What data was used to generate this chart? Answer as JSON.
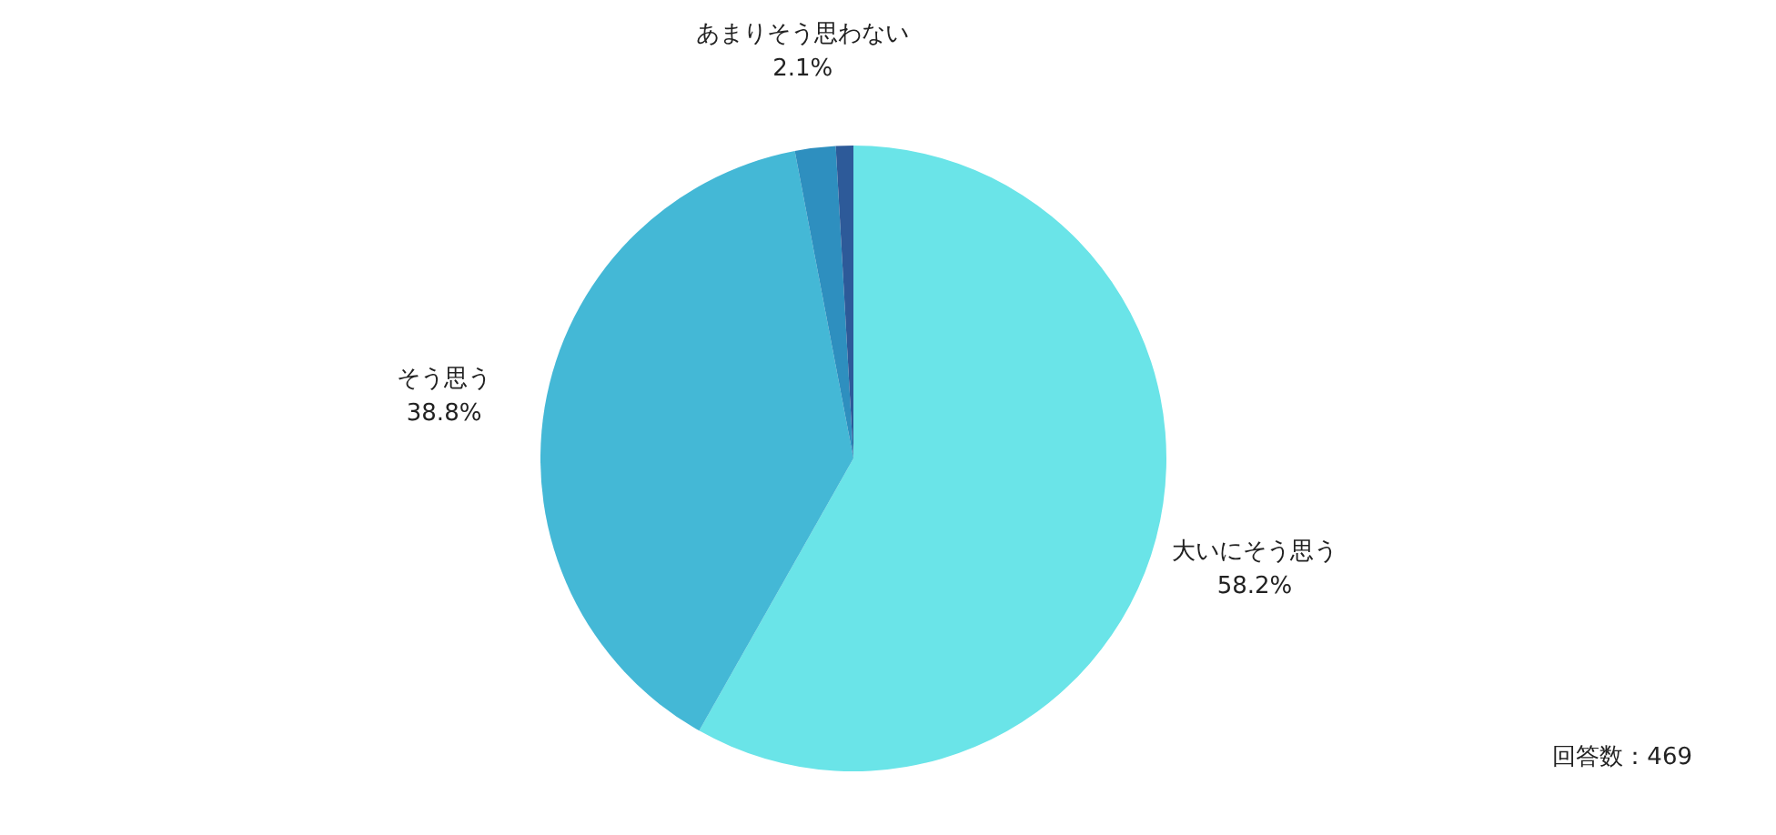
{
  "chart_data": {
    "type": "pie",
    "categories": [
      "大いにそう思う",
      "そう思う",
      "あまりそう思わない",
      null
    ],
    "values": [
      58.2,
      38.8,
      2.1,
      0.9
    ],
    "value_labels": [
      "58.2%",
      "38.8%",
      "2.1%",
      null
    ],
    "colors": [
      "#6ae4e8",
      "#44b8d6",
      "#2e8fbf",
      "#2d5a99"
    ],
    "annotations": [
      "回答数：469"
    ]
  }
}
